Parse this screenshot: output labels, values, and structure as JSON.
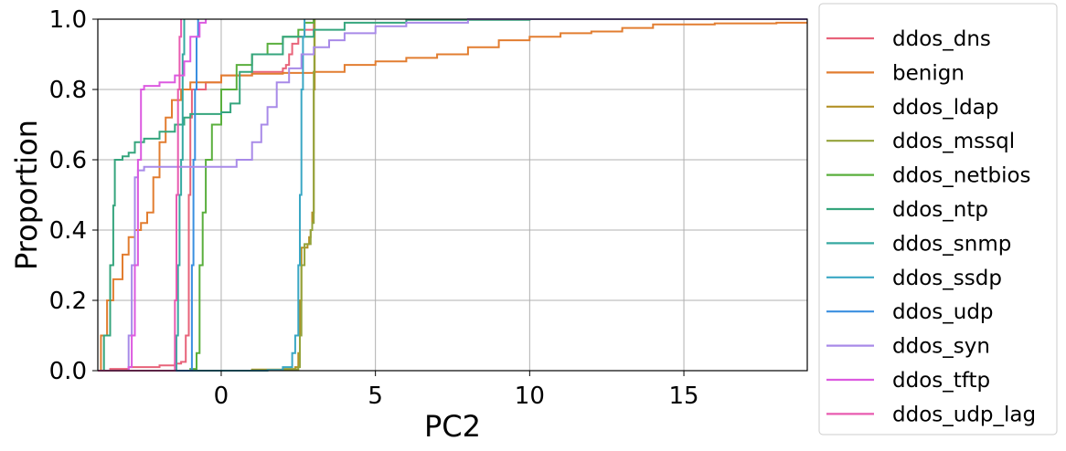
{
  "chart_data": {
    "type": "line",
    "subtype": "ecdf",
    "title": "",
    "xlabel": "PC2",
    "ylabel": "Proportion",
    "xlim": [
      -4,
      19
    ],
    "ylim": [
      0,
      1
    ],
    "x_ticks": [
      0,
      5,
      10,
      15
    ],
    "x_tick_labels": [
      "0",
      "5",
      "10",
      "15"
    ],
    "y_ticks": [
      0,
      0.2,
      0.4,
      0.6,
      0.8,
      1.0
    ],
    "y_tick_labels": [
      "0.0",
      "0.2",
      "0.4",
      "0.6",
      "0.8",
      "1.0"
    ],
    "grid": true,
    "legend_position": "outside-right",
    "series": [
      {
        "name": "ddos_dns",
        "color": "#e8637a",
        "points": [
          [
            -4,
            0
          ],
          [
            -3.6,
            0.005
          ],
          [
            -3,
            0.01
          ],
          [
            -2,
            0.015
          ],
          [
            -1.5,
            0.02
          ],
          [
            -1.3,
            0.025
          ],
          [
            -1.15,
            0.1
          ],
          [
            -1.05,
            0.5
          ],
          [
            -1,
            0.72
          ],
          [
            -0.95,
            0.8
          ],
          [
            -0.5,
            0.82
          ],
          [
            0,
            0.84
          ],
          [
            1,
            0.85
          ],
          [
            2,
            0.86
          ],
          [
            2.1,
            0.87
          ],
          [
            2.2,
            0.9
          ],
          [
            2.3,
            0.93
          ],
          [
            2.5,
            0.95
          ],
          [
            2.7,
            0.97
          ],
          [
            3,
            1.0
          ]
        ]
      },
      {
        "name": "benign",
        "color": "#e27d30",
        "points": [
          [
            -4,
            0
          ],
          [
            -3.9,
            0.1
          ],
          [
            -3.7,
            0.2
          ],
          [
            -3.5,
            0.26
          ],
          [
            -3.2,
            0.33
          ],
          [
            -3,
            0.38
          ],
          [
            -2.8,
            0.4
          ],
          [
            -2.6,
            0.42
          ],
          [
            -2.4,
            0.45
          ],
          [
            -2.2,
            0.55
          ],
          [
            -2,
            0.65
          ],
          [
            -1.8,
            0.72
          ],
          [
            -1.6,
            0.77
          ],
          [
            -1.3,
            0.8
          ],
          [
            -1,
            0.82
          ],
          [
            0,
            0.84
          ],
          [
            1,
            0.845
          ],
          [
            2,
            0.847
          ],
          [
            3,
            0.85
          ],
          [
            4,
            0.87
          ],
          [
            5,
            0.88
          ],
          [
            6,
            0.89
          ],
          [
            7,
            0.9
          ],
          [
            8,
            0.92
          ],
          [
            9,
            0.94
          ],
          [
            10,
            0.95
          ],
          [
            11,
            0.96
          ],
          [
            12,
            0.965
          ],
          [
            13,
            0.975
          ],
          [
            14,
            0.985
          ],
          [
            16,
            0.988
          ],
          [
            18,
            0.99
          ],
          [
            19,
            0.993
          ]
        ]
      },
      {
        "name": "ddos_ldap",
        "color": "#b39126",
        "points": [
          [
            -4,
            0
          ],
          [
            0,
            0.0
          ],
          [
            1,
            0.003
          ],
          [
            2,
            0.005
          ],
          [
            2.4,
            0.01
          ],
          [
            2.5,
            0.05
          ],
          [
            2.55,
            0.2
          ],
          [
            2.6,
            0.35
          ],
          [
            2.8,
            0.36
          ],
          [
            2.85,
            0.38
          ],
          [
            2.9,
            0.4
          ],
          [
            2.95,
            0.45
          ],
          [
            3,
            0.8
          ],
          [
            3.03,
            1.0
          ]
        ]
      },
      {
        "name": "ddos_mssql",
        "color": "#94a33b",
        "points": [
          [
            -4,
            0
          ],
          [
            1,
            0.002
          ],
          [
            2,
            0.004
          ],
          [
            2.5,
            0.01
          ],
          [
            2.55,
            0.1
          ],
          [
            2.6,
            0.3
          ],
          [
            2.7,
            0.36
          ],
          [
            2.9,
            0.4
          ],
          [
            2.95,
            0.42
          ],
          [
            3,
            0.85
          ],
          [
            3.02,
            1.0
          ]
        ]
      },
      {
        "name": "ddos_netbios",
        "color": "#5aaf3d",
        "points": [
          [
            -4,
            0
          ],
          [
            -1,
            0.005
          ],
          [
            -0.8,
            0.05
          ],
          [
            -0.7,
            0.3
          ],
          [
            -0.6,
            0.45
          ],
          [
            -0.5,
            0.6
          ],
          [
            -0.3,
            0.7
          ],
          [
            0,
            0.8
          ],
          [
            0.5,
            0.87
          ],
          [
            1,
            0.9
          ],
          [
            1.5,
            0.93
          ],
          [
            2,
            0.95
          ],
          [
            2.5,
            0.97
          ],
          [
            2.7,
            0.99
          ],
          [
            3,
            1.0
          ]
        ]
      },
      {
        "name": "ddos_ntp",
        "color": "#35a57d",
        "points": [
          [
            -4,
            0
          ],
          [
            -3.8,
            0.1
          ],
          [
            -3.6,
            0.3
          ],
          [
            -3.5,
            0.47
          ],
          [
            -3.45,
            0.6
          ],
          [
            -3.2,
            0.61
          ],
          [
            -3,
            0.62
          ],
          [
            -2.8,
            0.65
          ],
          [
            -2.5,
            0.66
          ],
          [
            -2,
            0.68
          ],
          [
            -1.5,
            0.7
          ],
          [
            -1.2,
            0.72
          ],
          [
            -1,
            0.73
          ],
          [
            0,
            0.735
          ],
          [
            0.3,
            0.76
          ],
          [
            0.6,
            0.85
          ],
          [
            1,
            0.9
          ],
          [
            2,
            0.95
          ],
          [
            3,
            0.97
          ],
          [
            4,
            0.99
          ],
          [
            6,
            0.998
          ],
          [
            10,
            1.0
          ],
          [
            19,
            1.0
          ]
        ]
      },
      {
        "name": "ddos_snmp",
        "color": "#36a9a1",
        "points": [
          [
            -4,
            0
          ],
          [
            -1.6,
            0.0
          ],
          [
            -1.45,
            0.1
          ],
          [
            -1.4,
            0.3
          ],
          [
            -1.35,
            0.5
          ],
          [
            -1.3,
            0.6
          ],
          [
            -1.25,
            0.9
          ],
          [
            -1.2,
            1.0
          ]
        ]
      },
      {
        "name": "ddos_ssdp",
        "color": "#3aa7c4",
        "points": [
          [
            -4,
            0
          ],
          [
            1.5,
            0.002
          ],
          [
            2,
            0.01
          ],
          [
            2.3,
            0.05
          ],
          [
            2.4,
            0.1
          ],
          [
            2.5,
            0.3
          ],
          [
            2.55,
            0.5
          ],
          [
            2.6,
            0.8
          ],
          [
            2.65,
            0.95
          ],
          [
            2.7,
            1.0
          ]
        ]
      },
      {
        "name": "ddos_udp",
        "color": "#3a8fe0",
        "points": [
          [
            -4,
            0
          ],
          [
            -1.0,
            0.0
          ],
          [
            -0.95,
            0.3
          ],
          [
            -0.9,
            0.6
          ],
          [
            -0.85,
            0.8
          ],
          [
            -0.8,
            0.95
          ],
          [
            -0.75,
            1.0
          ]
        ]
      },
      {
        "name": "ddos_syn",
        "color": "#a88ae8",
        "points": [
          [
            -4,
            0
          ],
          [
            -3.1,
            0.0
          ],
          [
            -3,
            0.1
          ],
          [
            -2.9,
            0.3
          ],
          [
            -2.8,
            0.55
          ],
          [
            -2.7,
            0.57
          ],
          [
            -2.5,
            0.58
          ],
          [
            0,
            0.58
          ],
          [
            0.5,
            0.6
          ],
          [
            1,
            0.65
          ],
          [
            1.3,
            0.7
          ],
          [
            1.5,
            0.75
          ],
          [
            1.8,
            0.82
          ],
          [
            2.2,
            0.86
          ],
          [
            2.6,
            0.9
          ],
          [
            3,
            0.92
          ],
          [
            3.5,
            0.94
          ],
          [
            4,
            0.96
          ],
          [
            5,
            0.98
          ],
          [
            6,
            0.99
          ],
          [
            8,
            1.0
          ],
          [
            19,
            1.0
          ]
        ]
      },
      {
        "name": "ddos_tftp",
        "color": "#dc5ae0",
        "points": [
          [
            -4,
            0
          ],
          [
            -3,
            0.01
          ],
          [
            -2.9,
            0.1
          ],
          [
            -2.8,
            0.3
          ],
          [
            -2.7,
            0.6
          ],
          [
            -2.6,
            0.8
          ],
          [
            -2.5,
            0.81
          ],
          [
            -2,
            0.82
          ],
          [
            -1.5,
            0.84
          ],
          [
            -1.2,
            0.88
          ],
          [
            -1,
            0.95
          ],
          [
            -0.7,
            0.99
          ],
          [
            -0.5,
            1.0
          ]
        ]
      },
      {
        "name": "ddos_udp_lag",
        "color": "#e85bb0",
        "points": [
          [
            -4,
            0
          ],
          [
            -1.6,
            0.0
          ],
          [
            -1.5,
            0.2
          ],
          [
            -1.45,
            0.5
          ],
          [
            -1.4,
            0.8
          ],
          [
            -1.35,
            0.95
          ],
          [
            -1.3,
            1.0
          ]
        ]
      }
    ]
  }
}
